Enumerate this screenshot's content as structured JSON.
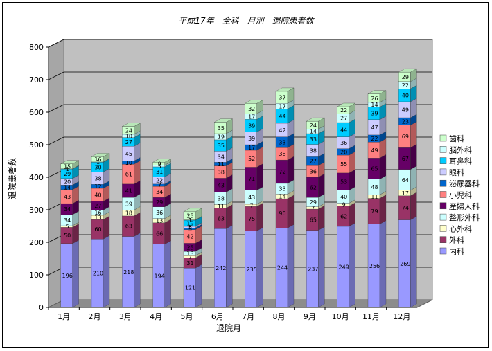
{
  "chart_data": {
    "type": "bar",
    "stacked": true,
    "three_d": true,
    "title": "平成17年　全科　月別　退院患者数",
    "xlabel": "退院月",
    "ylabel": "退院患者数",
    "ylim": [
      0,
      800
    ],
    "yticks": [
      0,
      100,
      200,
      300,
      400,
      500,
      600,
      700,
      800
    ],
    "grid": true,
    "legend_position": "right",
    "categories": [
      "1月",
      "2月",
      "3月",
      "4月",
      "5月",
      "6月",
      "7月",
      "8月",
      "9月",
      "10月",
      "11月",
      "12月"
    ],
    "series": [
      {
        "name": "内科",
        "color": "#9999ff",
        "values": [
          196,
          210,
          218,
          194,
          121,
          242,
          235,
          244,
          237,
          249,
          256,
          269
        ]
      },
      {
        "name": "外科",
        "color": "#993366",
        "values": [
          50,
          60,
          63,
          66,
          31,
          63,
          75,
          90,
          65,
          62,
          79,
          74
        ]
      },
      {
        "name": "心外科",
        "color": "#ffffcc",
        "values": [
          5,
          13,
          18,
          13,
          7,
          11,
          7,
          14,
          7,
          9,
          11,
          17
        ]
      },
      {
        "name": "整形外科",
        "color": "#ccffff",
        "values": [
          34,
          16,
          39,
          36,
          13,
          38,
          43,
          33,
          29,
          40,
          48,
          64
        ]
      },
      {
        "name": "産婦人科",
        "color": "#660066",
        "values": [
          34,
          27,
          41,
          29,
          25,
          43,
          71,
          72,
          62,
          53,
          65,
          67
        ]
      },
      {
        "name": "小児科",
        "color": "#ff8080",
        "values": [
          43,
          40,
          61,
          34,
          42,
          38,
          52,
          38,
          36,
          55,
          49,
          69
        ]
      },
      {
        "name": "泌尿器科",
        "color": "#0066cc",
        "values": [
          14,
          12,
          10,
          7,
          5,
          11,
          17,
          33,
          27,
          20,
          22,
          23
        ]
      },
      {
        "name": "眼科",
        "color": "#ccccff",
        "values": [
          20,
          38,
          45,
          22,
          5,
          34,
          39,
          42,
          38,
          36,
          47,
          49
        ]
      },
      {
        "name": "耳鼻科",
        "color": "#00ccff",
        "values": [
          29,
          30,
          27,
          31,
          19,
          35,
          39,
          44,
          33,
          44,
          39,
          40
        ]
      },
      {
        "name": "脳外科",
        "color": "#ccffff",
        "values": [
          1,
          1,
          10,
          5,
          1,
          19,
          17,
          17,
          14,
          27,
          14,
          22
        ]
      },
      {
        "name": "歯科",
        "color": "#ccffcc",
        "values": [
          15,
          16,
          24,
          9,
          25,
          35,
          32,
          37,
          24,
          22,
          26,
          29
        ]
      }
    ]
  }
}
